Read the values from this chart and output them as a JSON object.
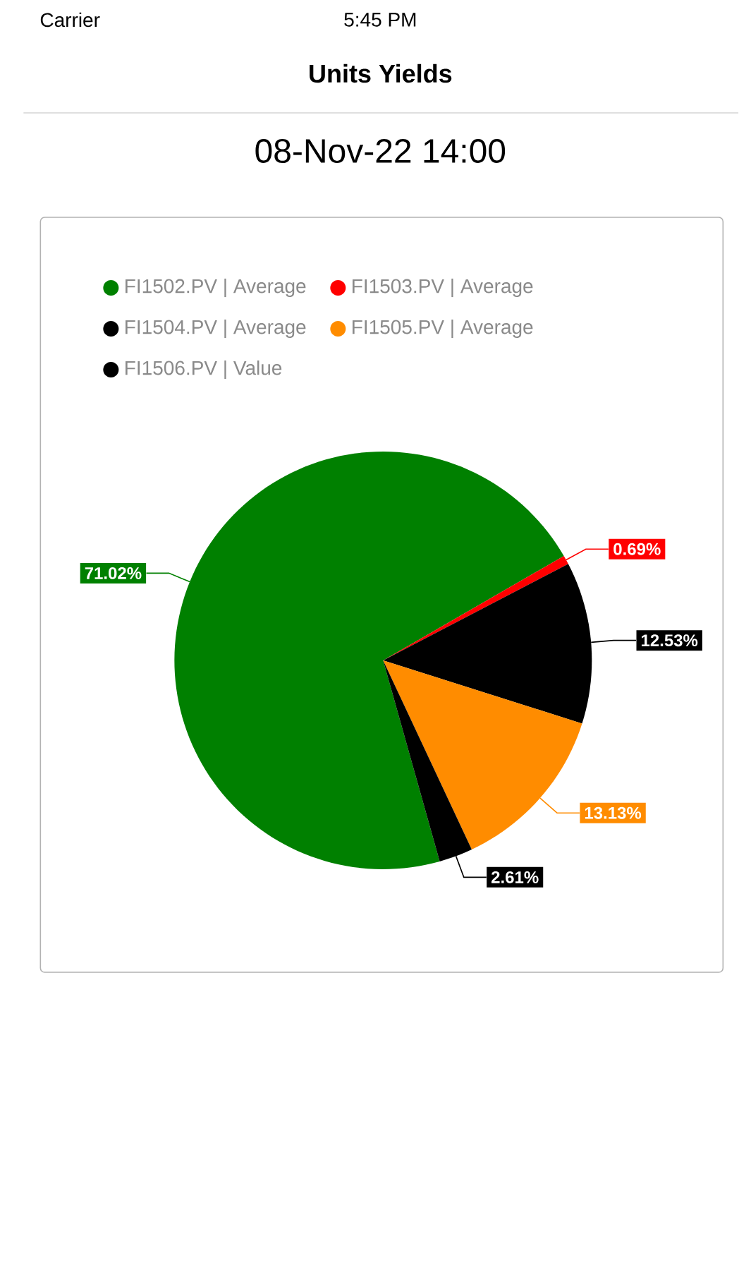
{
  "chart_data": {
    "type": "pie",
    "title": "Units Yields",
    "subtitle": "08-Nov-22 14:00",
    "annotations": [
      "Carrier",
      "5:45 PM"
    ],
    "categories": [
      "FI1502.PV | Average",
      "FI1503.PV | Average",
      "FI1504.PV | Average",
      "FI1505.PV | Average",
      "FI1506.PV | Value"
    ],
    "values": [
      71.02,
      0.69,
      12.53,
      13.13,
      2.61
    ],
    "value_labels": [
      "71.02%",
      "0.69%",
      "12.53%",
      "13.13%",
      "2.61%"
    ],
    "colors": [
      "#008000",
      "#ff0000",
      "#000000",
      "#ff8c00",
      "#000000"
    ],
    "legend": "top"
  }
}
